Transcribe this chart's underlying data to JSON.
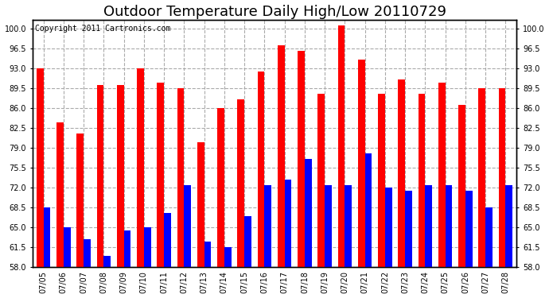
{
  "title": "Outdoor Temperature Daily High/Low 20110729",
  "copyright_text": "Copyright 2011 Cartronics.com",
  "dates": [
    "07/05",
    "07/06",
    "07/07",
    "07/08",
    "07/09",
    "07/10",
    "07/11",
    "07/12",
    "07/13",
    "07/14",
    "07/15",
    "07/16",
    "07/17",
    "07/18",
    "07/19",
    "07/20",
    "07/21",
    "07/22",
    "07/23",
    "07/24",
    "07/25",
    "07/26",
    "07/27",
    "07/28"
  ],
  "highs": [
    93.0,
    83.5,
    81.5,
    90.0,
    90.0,
    93.0,
    90.5,
    89.5,
    80.0,
    86.0,
    87.5,
    92.5,
    97.0,
    96.0,
    88.5,
    100.5,
    94.5,
    88.5,
    91.0,
    88.5,
    90.5,
    86.5,
    89.5,
    89.5
  ],
  "lows": [
    68.5,
    65.0,
    63.0,
    60.0,
    64.5,
    65.0,
    67.5,
    72.5,
    62.5,
    61.5,
    67.0,
    72.5,
    73.5,
    77.0,
    72.5,
    72.5,
    78.0,
    72.0,
    71.5,
    72.5,
    72.5,
    71.5,
    68.5,
    72.5
  ],
  "bar_width": 0.35,
  "high_color": "#ff0000",
  "low_color": "#0000ff",
  "background_color": "#ffffff",
  "grid_color": "#aaaaaa",
  "ymin": 58.0,
  "ymax": 101.5,
  "yticks": [
    58.0,
    61.5,
    65.0,
    68.5,
    72.0,
    75.5,
    79.0,
    82.5,
    86.0,
    89.5,
    93.0,
    96.5,
    100.0
  ],
  "title_fontsize": 13,
  "copyright_fontsize": 7,
  "tick_fontsize": 7,
  "border_color": "#000000"
}
